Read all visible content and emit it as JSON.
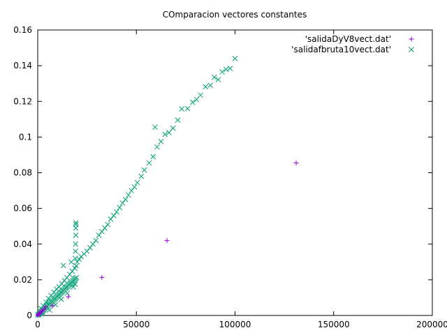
{
  "chart_data": {
    "type": "scatter",
    "title": "COmparacion vectores constantes",
    "xlabel": "",
    "ylabel": "",
    "xlim": [
      0,
      200000
    ],
    "ylim": [
      0,
      0.16
    ],
    "xticks": [
      0,
      50000,
      100000,
      150000,
      200000
    ],
    "xtick_labels": [
      "0",
      "50000",
      "100000",
      "150000",
      "200000"
    ],
    "yticks": [
      0,
      0.02,
      0.04,
      0.06,
      0.08,
      0.1,
      0.12,
      0.14,
      0.16
    ],
    "ytick_labels": [
      "0",
      "0.02",
      "0.04",
      "0.06",
      "0.08",
      "0.1",
      "0.12",
      "0.14",
      "0.16"
    ],
    "grid": false,
    "legend_position": "top-right",
    "series": [
      {
        "name": "'salidaDyV8vect.dat'",
        "marker": "plus",
        "color": "#9400d3",
        "points": [
          [
            0,
            0.0
          ],
          [
            100,
            0.0002
          ],
          [
            300,
            0.0005
          ],
          [
            600,
            0.0009
          ],
          [
            1000,
            0.0012
          ],
          [
            1500,
            0.0018
          ],
          [
            2000,
            0.0022
          ],
          [
            2600,
            0.003
          ],
          [
            3200,
            0.0035
          ],
          [
            4100,
            0.0048
          ],
          [
            7500,
            0.0055
          ],
          [
            15500,
            0.0105
          ],
          [
            32500,
            0.0213
          ],
          [
            65500,
            0.042
          ],
          [
            131000,
            0.0855
          ]
        ]
      },
      {
        "name": "'salidafbruta10vect.dat'",
        "marker": "x",
        "color": "#009e73",
        "points": [
          [
            100,
            0.0002
          ],
          [
            400,
            0.0004
          ],
          [
            700,
            0.0008
          ],
          [
            1000,
            0.0012
          ],
          [
            1300,
            0.0015
          ],
          [
            1700,
            0.0019
          ],
          [
            2100,
            0.0022
          ],
          [
            2500,
            0.0027
          ],
          [
            2900,
            0.0031
          ],
          [
            3300,
            0.0036
          ],
          [
            3700,
            0.004
          ],
          [
            4100,
            0.0045
          ],
          [
            4500,
            0.0049
          ],
          [
            4900,
            0.0053
          ],
          [
            5300,
            0.0058
          ],
          [
            5700,
            0.0062
          ],
          [
            6100,
            0.0066
          ],
          [
            6500,
            0.007
          ],
          [
            6900,
            0.0075
          ],
          [
            7300,
            0.0079
          ],
          [
            7700,
            0.0083
          ],
          [
            8100,
            0.0088
          ],
          [
            8500,
            0.0092
          ],
          [
            8900,
            0.0096
          ],
          [
            9300,
            0.0101
          ],
          [
            9700,
            0.0105
          ],
          [
            10100,
            0.0109
          ],
          [
            10500,
            0.0114
          ],
          [
            10900,
            0.0118
          ],
          [
            11300,
            0.0122
          ],
          [
            11700,
            0.0127
          ],
          [
            12100,
            0.0131
          ],
          [
            12500,
            0.0135
          ],
          [
            12900,
            0.014
          ],
          [
            13300,
            0.0144
          ],
          [
            13700,
            0.0148
          ],
          [
            14100,
            0.0153
          ],
          [
            14500,
            0.0157
          ],
          [
            14900,
            0.0161
          ],
          [
            15300,
            0.0166
          ],
          [
            15700,
            0.017
          ],
          [
            16100,
            0.0174
          ],
          [
            16500,
            0.0179
          ],
          [
            16900,
            0.0183
          ],
          [
            17300,
            0.0187
          ],
          [
            17700,
            0.0192
          ],
          [
            18100,
            0.0196
          ],
          [
            18500,
            0.02
          ],
          [
            18900,
            0.0205
          ],
          [
            19300,
            0.0209
          ],
          [
            19700,
            0.0213
          ],
          [
            1500,
            0.004
          ],
          [
            2800,
            0.0055
          ],
          [
            4200,
            0.0075
          ],
          [
            5500,
            0.0095
          ],
          [
            6800,
            0.0112
          ],
          [
            8200,
            0.013
          ],
          [
            9500,
            0.0148
          ],
          [
            10800,
            0.016
          ],
          [
            12200,
            0.0178
          ],
          [
            13500,
            0.0195
          ],
          [
            14800,
            0.0212
          ],
          [
            16200,
            0.023
          ],
          [
            17500,
            0.0248
          ],
          [
            18800,
            0.0265
          ],
          [
            19500,
            0.0278
          ],
          [
            3000,
            0.001
          ],
          [
            6000,
            0.003
          ],
          [
            9000,
            0.006
          ],
          [
            12000,
            0.009
          ],
          [
            15000,
            0.0125
          ],
          [
            18000,
            0.016
          ],
          [
            19000,
            0.0175
          ],
          [
            13000,
            0.028
          ],
          [
            17000,
            0.03
          ],
          [
            19000,
            0.032
          ],
          [
            19200,
            0.036
          ],
          [
            19200,
            0.04
          ],
          [
            19300,
            0.045
          ],
          [
            19300,
            0.049
          ],
          [
            19400,
            0.051
          ],
          [
            19400,
            0.052
          ],
          [
            20000,
            0.03
          ],
          [
            21000,
            0.0315
          ],
          [
            22000,
            0.033
          ],
          [
            23500,
            0.0345
          ],
          [
            25000,
            0.036
          ],
          [
            26500,
            0.038
          ],
          [
            28000,
            0.04
          ],
          [
            29500,
            0.042
          ],
          [
            31000,
            0.045
          ],
          [
            32500,
            0.047
          ],
          [
            34000,
            0.049
          ],
          [
            35500,
            0.051
          ],
          [
            37000,
            0.054
          ],
          [
            38500,
            0.056
          ],
          [
            40000,
            0.058
          ],
          [
            41500,
            0.0605
          ],
          [
            43000,
            0.063
          ],
          [
            44500,
            0.065
          ],
          [
            46000,
            0.0675
          ],
          [
            47500,
            0.07
          ],
          [
            49000,
            0.072
          ],
          [
            50500,
            0.0745
          ],
          [
            52500,
            0.078
          ],
          [
            54000,
            0.0815
          ],
          [
            56500,
            0.0855
          ],
          [
            58500,
            0.089
          ],
          [
            60500,
            0.0945
          ],
          [
            62500,
            0.0975
          ],
          [
            64500,
            0.1015
          ],
          [
            66500,
            0.1025
          ],
          [
            68500,
            0.105
          ],
          [
            59500,
            0.1055
          ],
          [
            71000,
            0.1095
          ],
          [
            73000,
            0.1158
          ],
          [
            76000,
            0.116
          ],
          [
            78500,
            0.1195
          ],
          [
            80500,
            0.121
          ],
          [
            82500,
            0.1235
          ],
          [
            85000,
            0.1282
          ],
          [
            87500,
            0.129
          ],
          [
            89500,
            0.1335
          ],
          [
            91500,
            0.1322
          ],
          [
            93500,
            0.1365
          ],
          [
            95500,
            0.138
          ],
          [
            97500,
            0.1385
          ],
          [
            100000,
            0.144
          ]
        ]
      }
    ]
  }
}
